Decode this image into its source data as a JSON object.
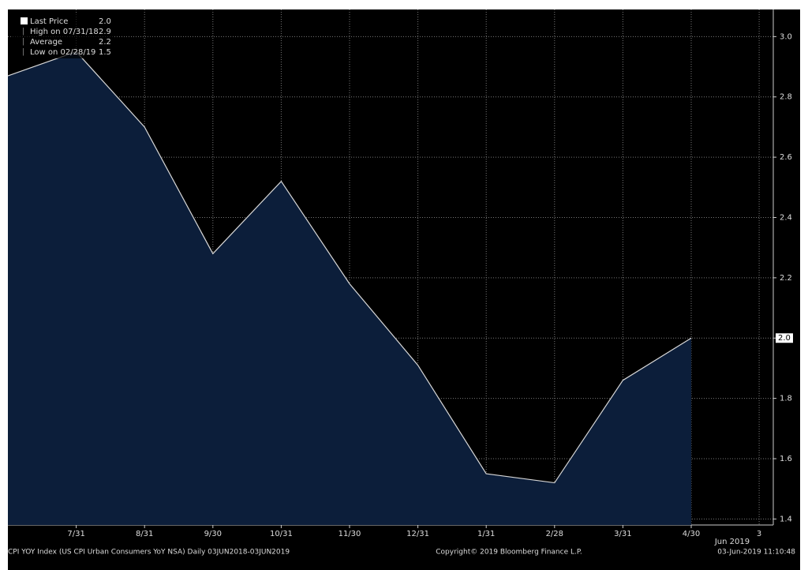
{
  "chart_data": {
    "type": "area",
    "categories": [
      null,
      "7/31",
      "8/31",
      "9/30",
      "10/31",
      "11/30",
      "12/31",
      "1/31",
      "2/28",
      "3/31",
      "4/30"
    ],
    "series": [
      {
        "name": "Last Price",
        "color": "#d8d8d8",
        "fill": "#0c1e3a",
        "values": [
          2.87,
          2.95,
          2.7,
          2.28,
          2.52,
          2.18,
          1.91,
          1.55,
          1.52,
          1.86,
          2.0
        ]
      }
    ],
    "end_tick_label": "3",
    "end_month_label": "Jun 2019",
    "ylim": [
      1.38,
      3.09
    ],
    "yticks": [
      {
        "value": 1.4,
        "label": "1.4"
      },
      {
        "value": 1.6,
        "label": "1.6"
      },
      {
        "value": 1.8,
        "label": "1.8"
      },
      {
        "value": 2.0,
        "label": "2.0"
      },
      {
        "value": 2.2,
        "label": "2.2"
      },
      {
        "value": 2.4,
        "label": "2.4"
      },
      {
        "value": 2.6,
        "label": "2.6"
      },
      {
        "value": 2.8,
        "label": "2.8"
      },
      {
        "value": 3.0,
        "label": "3.0"
      }
    ],
    "last_price_label": "2.0",
    "grid": true,
    "legend": [
      {
        "label": "Last Price",
        "value": "2.0"
      },
      {
        "label": "High on 07/31/18",
        "value": "2.9"
      },
      {
        "label": "Average",
        "value": "2.2"
      },
      {
        "label": "Low on 02/28/19",
        "value": "1.5"
      }
    ],
    "footer_left": "CPI YOY Index (US CPI Urban Consumers YoY NSA)  Daily 03JUN2018-03JUN2019",
    "footer_center": "Copyright© 2019 Bloomberg Finance L.P.",
    "footer_right": "03-Jun-2019 11:10:48"
  }
}
